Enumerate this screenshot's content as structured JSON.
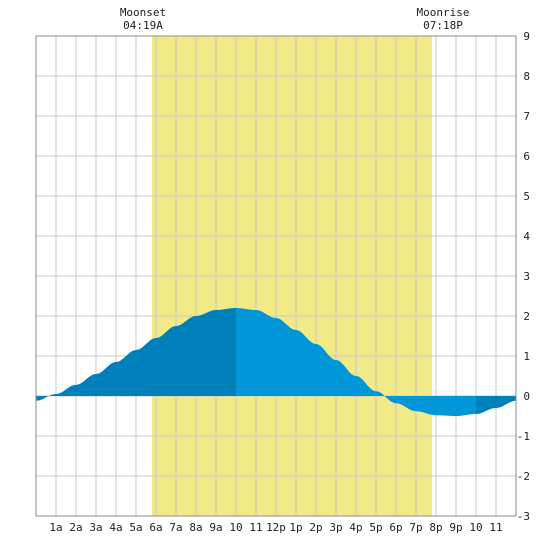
{
  "chart_data": {
    "type": "area",
    "x_tick_labels": [
      "1a",
      "2a",
      "3a",
      "4a",
      "5a",
      "6a",
      "7a",
      "8a",
      "9a",
      "10",
      "11",
      "12p",
      "1p",
      "2p",
      "3p",
      "4p",
      "5p",
      "6p",
      "7p",
      "8p",
      "9p",
      "10",
      "11"
    ],
    "y_ticks": [
      -3,
      -2,
      -1,
      0,
      1,
      2,
      3,
      4,
      5,
      6,
      7,
      8,
      9
    ],
    "xlim": [
      0,
      24
    ],
    "ylim": [
      -3,
      9
    ],
    "daylight_band": [
      5.8,
      19.8
    ],
    "series": [
      {
        "x": [
          0,
          1,
          2,
          3,
          4,
          5,
          6,
          7,
          8,
          9,
          10,
          11,
          12,
          13,
          14,
          15,
          16,
          17,
          18,
          19,
          20,
          21,
          22,
          23,
          24
        ],
        "y": [
          -0.12,
          0.05,
          0.28,
          0.55,
          0.85,
          1.15,
          1.45,
          1.75,
          2.0,
          2.15,
          2.2,
          2.15,
          1.95,
          1.65,
          1.3,
          0.9,
          0.5,
          0.12,
          -0.18,
          -0.38,
          -0.48,
          -0.5,
          -0.45,
          -0.3,
          -0.12
        ]
      }
    ],
    "annotations": [
      {
        "label": "Moonset",
        "time": "04:19A",
        "x": 5.3
      },
      {
        "label": "Moonrise",
        "time": "07:18P",
        "x": 20.2
      }
    ],
    "colors": {
      "daylight": "#f2ea87",
      "tide_dark": "#0080bb",
      "tide_light": "#0096d8",
      "grid": "#c8c8c8",
      "frame": "#888888"
    }
  }
}
